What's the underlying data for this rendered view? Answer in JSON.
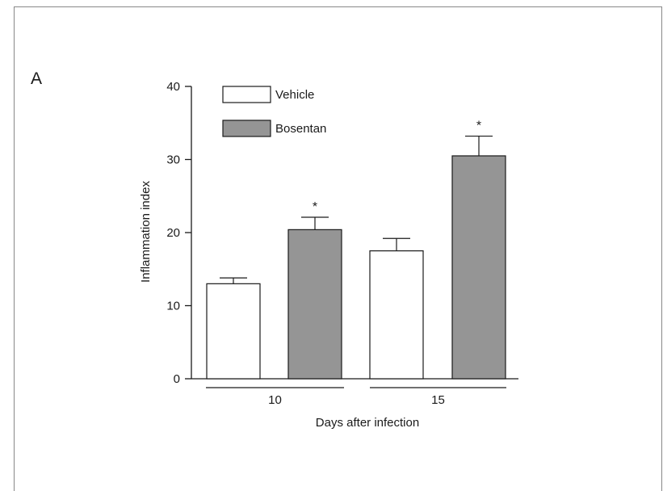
{
  "panel_label": "A",
  "chart_data": {
    "type": "bar",
    "title": "",
    "xlabel": "Days after infection",
    "ylabel": "Inflammation index",
    "categories": [
      "10",
      "15"
    ],
    "ylim": [
      0,
      40
    ],
    "yticks": [
      "0",
      "10",
      "20",
      "30",
      "40"
    ],
    "series": [
      {
        "name": "Vehicle",
        "color": "#ffffff",
        "values": [
          13.0,
          17.5
        ],
        "errors": [
          0.8,
          1.7
        ],
        "annotations": [
          "",
          ""
        ]
      },
      {
        "name": "Bosentan",
        "color": "#959595",
        "values": [
          20.4,
          30.5
        ],
        "errors": [
          1.7,
          2.7
        ],
        "annotations": [
          "*",
          "*"
        ]
      }
    ],
    "legend_position": "top-left",
    "grid": false
  }
}
